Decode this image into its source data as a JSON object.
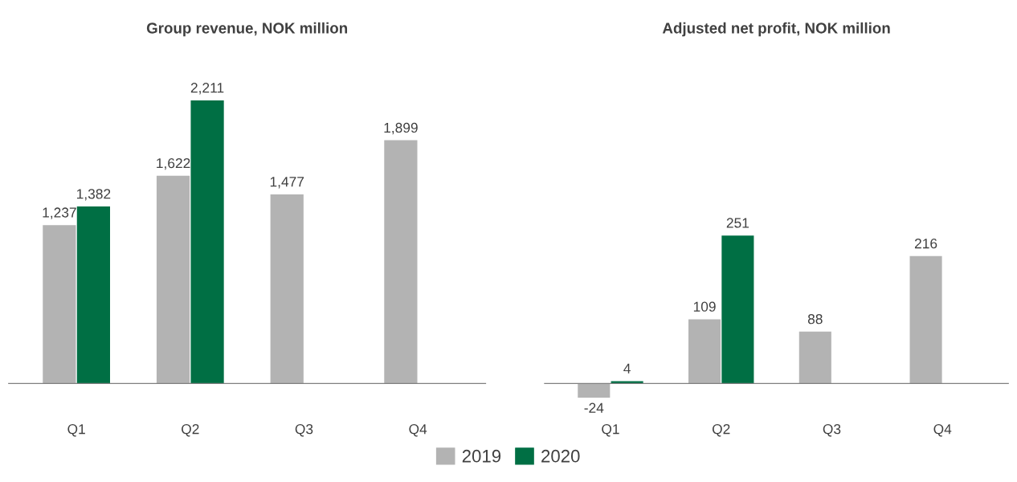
{
  "chart_data": [
    {
      "type": "bar",
      "title": "Group revenue, NOK million",
      "categories": [
        "Q1",
        "Q2",
        "Q3",
        "Q4"
      ],
      "legend": "bottom",
      "grid": false,
      "series": [
        {
          "name": "2019",
          "color": "#b3b3b3",
          "values": [
            1237,
            1622,
            1477,
            1899
          ],
          "value_labels": [
            "1,237",
            "1,622",
            "1,477",
            "1,899"
          ]
        },
        {
          "name": "2020",
          "color": "#006f44",
          "values": [
            1382,
            2211,
            null,
            null
          ],
          "value_labels": [
            "1,382",
            "2,211",
            null,
            null
          ]
        }
      ]
    },
    {
      "type": "bar",
      "title": "Adjusted net profit, NOK million",
      "categories": [
        "Q1",
        "Q2",
        "Q3",
        "Q4"
      ],
      "data_labels": true,
      "legend": "bottom",
      "grid": false,
      "series": [
        {
          "name": "2019",
          "color": "#b3b3b3",
          "values": [
            -24,
            109,
            88,
            216
          ]
        },
        {
          "name": "2020",
          "color": "#006f44",
          "values": [
            4,
            251,
            null,
            null
          ]
        }
      ]
    }
  ]
}
